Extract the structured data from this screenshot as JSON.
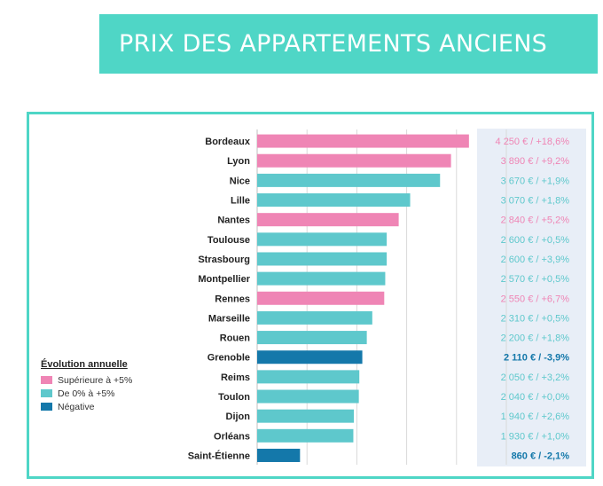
{
  "header": {
    "title": "PRIX DES APPARTEMENTS ANCIENS"
  },
  "colors": {
    "banner": "#4fd6c6",
    "sup5": "#ef85b5",
    "zero5": "#5ec8cc",
    "neg": "#1478aa",
    "panel": "#e8eef7"
  },
  "legend": {
    "title": "Évolution annuelle",
    "items": [
      {
        "key": "sup5",
        "label": "Supérieure à +5%"
      },
      {
        "key": "zero5",
        "label": "De 0% à +5%"
      },
      {
        "key": "neg",
        "label": "Négative"
      }
    ]
  },
  "chart_data": {
    "type": "bar",
    "orientation": "horizontal",
    "xlim": [
      0,
      5000
    ],
    "grid": true,
    "categories": [
      "Bordeaux",
      "Lyon",
      "Nice",
      "Lille",
      "Nantes",
      "Toulouse",
      "Strasbourg",
      "Montpellier",
      "Rennes",
      "Marseille",
      "Rouen",
      "Grenoble",
      "Reims",
      "Toulon",
      "Dijon",
      "Orléans",
      "Saint-Étienne"
    ],
    "values": [
      4250,
      3890,
      3670,
      3070,
      2840,
      2600,
      2600,
      2570,
      2550,
      2310,
      2200,
      2110,
      2050,
      2040,
      1940,
      1930,
      860
    ],
    "categories_color": [
      "sup5",
      "sup5",
      "zero5",
      "zero5",
      "sup5",
      "zero5",
      "zero5",
      "zero5",
      "sup5",
      "zero5",
      "zero5",
      "neg",
      "zero5",
      "zero5",
      "zero5",
      "zero5",
      "neg"
    ],
    "value_labels": [
      "4 250 € / +18,6%",
      "3 890 € / +9,2%",
      "3 670 € / +1,9%",
      "3 070 € / +1,8%",
      "2 840 € / +5,2%",
      "2 600 € / +0,5%",
      "2 600 € / +3,9%",
      "2 570 € / +0,5%",
      "2 550 € / +6,7%",
      "2 310 € / +0,5%",
      "2 200 € / +1,8%",
      "2 110 € / -3,9%",
      "2 050 € / +3,2%",
      "2 040 € / +0,0%",
      "1 940 € / +2,6%",
      "1 930 € / +1,0%",
      "860 € / -2,1%"
    ]
  }
}
